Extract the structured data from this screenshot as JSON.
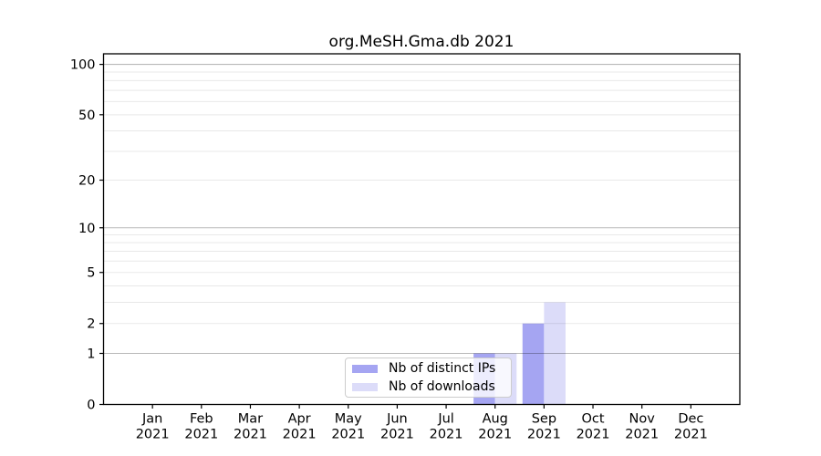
{
  "chart_data": {
    "type": "bar",
    "title": "org.MeSH.Gma.db 2021",
    "year_label": "2021",
    "categories": [
      "Jan",
      "Feb",
      "Mar",
      "Apr",
      "May",
      "Jun",
      "Jul",
      "Aug",
      "Sep",
      "Oct",
      "Nov",
      "Dec"
    ],
    "series": [
      {
        "name": "Nb of distinct IPs",
        "color": "#a5a5f2",
        "values": [
          0,
          0,
          0,
          0,
          0,
          0,
          0,
          1,
          2,
          0,
          0,
          0
        ]
      },
      {
        "name": "Nb of downloads",
        "color": "#dcdcf9",
        "values": [
          0,
          0,
          0,
          0,
          0,
          0,
          0,
          1,
          3,
          0,
          0,
          0
        ]
      }
    ],
    "yscale": "log1p",
    "yticks": [
      0,
      1,
      2,
      5,
      10,
      20,
      50,
      100
    ],
    "ylim": [
      0,
      115.6
    ],
    "grid": "horizontal, minor lines at 1-9/10-90, major lines at 1, 10, 100",
    "legend_position": "inside bottom-center",
    "colors": {
      "spine": "#000000",
      "minor_grid": "rgba(0,0,0,0.09)",
      "major_grid": "rgba(0,0,0,0.28)"
    }
  }
}
